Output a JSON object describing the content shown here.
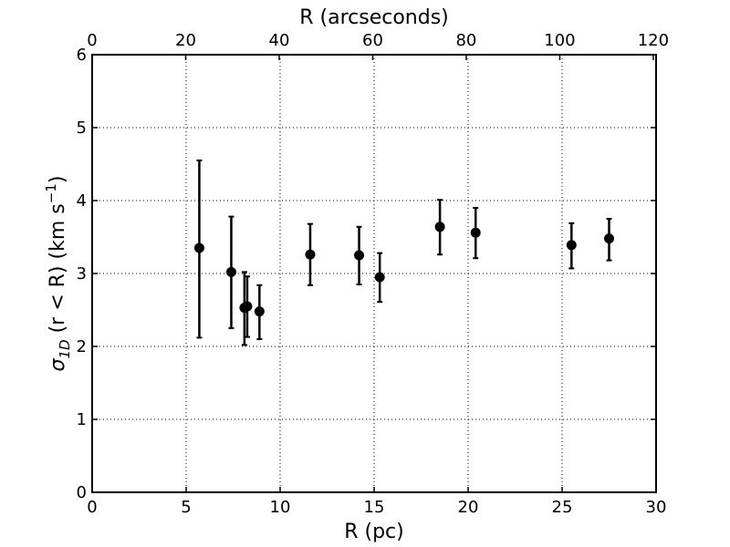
{
  "chart_data": {
    "type": "scatter",
    "xlabel": "R (pc)",
    "x2label": "R (arcseconds)",
    "ylabel": {
      "symbol": "σ",
      "subscript": "1D",
      "text": " (r < R) (km s",
      "superscript": "−1",
      "close": ")"
    },
    "xlim": [
      0,
      30
    ],
    "ylim": [
      0,
      6
    ],
    "x2lim": [
      0,
      120.6
    ],
    "xticks": [
      0,
      5,
      10,
      15,
      20,
      25,
      30
    ],
    "yticks": [
      0,
      1,
      2,
      3,
      4,
      5,
      6
    ],
    "x2ticks": [
      0,
      20,
      40,
      60,
      80,
      100,
      120
    ],
    "grid": true,
    "marker_color": "#000000",
    "points": [
      {
        "x": 5.7,
        "y": 3.35,
        "ylow": 2.12,
        "yhigh": 4.55
      },
      {
        "x": 7.4,
        "y": 3.02,
        "ylow": 2.25,
        "yhigh": 3.78
      },
      {
        "x": 8.1,
        "y": 2.53,
        "ylow": 2.02,
        "yhigh": 3.02
      },
      {
        "x": 8.25,
        "y": 2.55,
        "ylow": 2.13,
        "yhigh": 2.96
      },
      {
        "x": 8.9,
        "y": 2.48,
        "ylow": 2.1,
        "yhigh": 2.84
      },
      {
        "x": 11.6,
        "y": 3.26,
        "ylow": 2.84,
        "yhigh": 3.68
      },
      {
        "x": 14.2,
        "y": 3.25,
        "ylow": 2.85,
        "yhigh": 3.64
      },
      {
        "x": 15.3,
        "y": 2.95,
        "ylow": 2.61,
        "yhigh": 3.28
      },
      {
        "x": 18.5,
        "y": 3.64,
        "ylow": 3.26,
        "yhigh": 4.01
      },
      {
        "x": 20.4,
        "y": 3.56,
        "ylow": 3.21,
        "yhigh": 3.9
      },
      {
        "x": 25.5,
        "y": 3.39,
        "ylow": 3.07,
        "yhigh": 3.69
      },
      {
        "x": 27.5,
        "y": 3.48,
        "ylow": 3.18,
        "yhigh": 3.75
      }
    ]
  }
}
